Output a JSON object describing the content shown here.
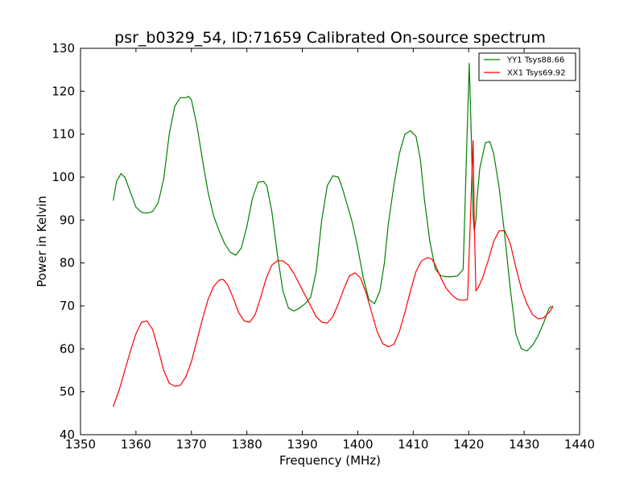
{
  "chart_data": {
    "type": "line",
    "title": "psr_b0329_54, ID:71659 Calibrated On-source spectrum",
    "xlabel": "Frequency (MHz)",
    "ylabel": "Power in Kelvin",
    "xlim": [
      1350,
      1440
    ],
    "ylim": [
      40,
      130
    ],
    "xticks": [
      1350,
      1360,
      1370,
      1380,
      1390,
      1400,
      1410,
      1420,
      1430,
      1440
    ],
    "yticks": [
      40,
      50,
      60,
      70,
      80,
      90,
      100,
      110,
      120,
      130
    ],
    "grid": false,
    "legend_position": "top-right",
    "series": [
      {
        "name": "YY1 Tsys88.66",
        "color": "#008000",
        "x": [
          1355.9,
          1356.5,
          1357.3,
          1358.0,
          1359.0,
          1360.0,
          1361.0,
          1362.0,
          1363.0,
          1364.0,
          1365.0,
          1366.0,
          1367.0,
          1368.0,
          1369.0,
          1369.5,
          1370.0,
          1371.0,
          1372.0,
          1373.0,
          1374.0,
          1375.0,
          1376.0,
          1377.0,
          1378.0,
          1379.0,
          1380.0,
          1381.0,
          1382.0,
          1383.0,
          1383.6,
          1384.5,
          1385.5,
          1386.5,
          1387.5,
          1388.5,
          1389.5,
          1390.5,
          1391.5,
          1392.5,
          1393.5,
          1394.5,
          1395.5,
          1396.5,
          1397.2,
          1398.0,
          1399.0,
          1400.0,
          1401.0,
          1402.0,
          1403.0,
          1404.0,
          1404.8,
          1405.5,
          1406.5,
          1407.5,
          1408.5,
          1409.5,
          1410.5,
          1411.3,
          1412.0,
          1413.0,
          1414.0,
          1415.0,
          1416.0,
          1417.0,
          1418.0,
          1419.0,
          1419.6,
          1420.1,
          1420.5,
          1420.8,
          1421.0,
          1421.3,
          1421.5,
          1422.0,
          1423.0,
          1423.8,
          1424.5,
          1425.5,
          1426.5,
          1427.5,
          1428.5,
          1429.5,
          1430.5,
          1431.5,
          1432.5,
          1433.5,
          1434.5,
          1435.2
        ],
        "values": [
          94.5,
          99.0,
          100.8,
          100.0,
          96.5,
          93.0,
          91.8,
          91.6,
          92.0,
          94.0,
          99.5,
          110.0,
          116.5,
          118.5,
          118.5,
          118.8,
          118.0,
          112.0,
          104.0,
          96.5,
          91.0,
          87.5,
          84.5,
          82.5,
          81.8,
          83.5,
          88.5,
          95.0,
          98.8,
          99.0,
          98.0,
          92.0,
          82.0,
          73.5,
          69.5,
          68.8,
          69.5,
          70.5,
          72.0,
          78.0,
          90.0,
          98.0,
          100.3,
          100.0,
          97.5,
          94.0,
          89.5,
          83.5,
          76.5,
          71.5,
          70.5,
          73.5,
          80.0,
          89.0,
          98.0,
          105.5,
          110.0,
          110.8,
          109.5,
          104.0,
          95.0,
          85.0,
          78.5,
          77.0,
          76.8,
          76.8,
          77.0,
          78.5,
          105.0,
          126.5,
          108.0,
          91.0,
          87.5,
          90.0,
          95.0,
          102.0,
          108.0,
          108.3,
          105.5,
          97.5,
          86.5,
          74.0,
          63.5,
          60.0,
          59.5,
          60.8,
          63.0,
          66.0,
          69.5,
          70.0
        ]
      },
      {
        "name": "XX1 Tsys69.92",
        "color": "#ff0000",
        "x": [
          1355.9,
          1357.0,
          1358.0,
          1359.0,
          1360.0,
          1361.0,
          1362.0,
          1363.0,
          1364.0,
          1365.0,
          1366.0,
          1367.0,
          1368.0,
          1369.0,
          1370.0,
          1371.0,
          1372.0,
          1373.0,
          1374.0,
          1375.0,
          1375.7,
          1376.5,
          1377.5,
          1378.5,
          1379.5,
          1380.5,
          1381.5,
          1382.5,
          1383.5,
          1384.5,
          1385.5,
          1386.5,
          1387.5,
          1388.5,
          1389.5,
          1390.5,
          1391.5,
          1392.5,
          1393.5,
          1394.5,
          1395.5,
          1396.5,
          1397.5,
          1398.5,
          1399.5,
          1400.5,
          1401.5,
          1402.5,
          1403.5,
          1404.5,
          1405.5,
          1406.5,
          1407.5,
          1408.5,
          1409.5,
          1410.5,
          1411.5,
          1412.5,
          1413.3,
          1414.0,
          1415.0,
          1416.0,
          1417.0,
          1418.0,
          1419.0,
          1419.8,
          1420.3,
          1420.8,
          1421.0,
          1421.3,
          1421.8,
          1422.5,
          1423.5,
          1424.5,
          1425.5,
          1426.5,
          1427.5,
          1428.5,
          1429.5,
          1430.5,
          1431.5,
          1432.5,
          1433.5,
          1434.5,
          1435.2
        ],
        "values": [
          46.5,
          50.5,
          55.0,
          59.5,
          63.5,
          66.2,
          66.5,
          64.5,
          60.0,
          55.0,
          52.0,
          51.3,
          51.5,
          53.5,
          57.0,
          62.0,
          67.0,
          71.5,
          74.5,
          76.0,
          76.2,
          75.0,
          72.0,
          68.5,
          66.5,
          66.2,
          68.0,
          72.0,
          76.5,
          79.5,
          80.5,
          80.5,
          79.5,
          77.5,
          75.0,
          72.5,
          70.0,
          67.5,
          66.2,
          66.0,
          67.5,
          70.5,
          74.0,
          77.0,
          77.7,
          76.5,
          73.0,
          68.5,
          64.0,
          61.2,
          60.5,
          61.0,
          64.0,
          68.5,
          73.5,
          78.0,
          80.5,
          81.2,
          81.0,
          79.5,
          76.5,
          74.0,
          72.5,
          71.5,
          71.3,
          71.5,
          90.0,
          108.5,
          90.0,
          73.5,
          74.5,
          76.5,
          80.5,
          85.0,
          87.5,
          87.5,
          84.5,
          79.0,
          74.0,
          70.5,
          68.0,
          67.0,
          67.2,
          68.5,
          69.8
        ]
      }
    ]
  }
}
